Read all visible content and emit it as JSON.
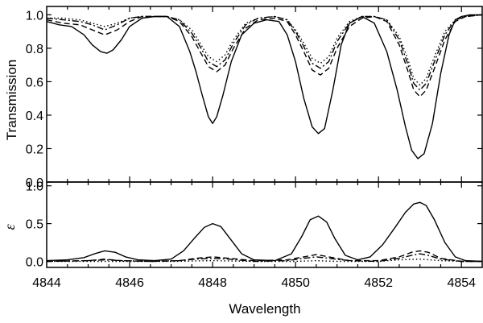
{
  "chart_data": [
    {
      "type": "line",
      "panel": "top",
      "ylabel": "Transmission",
      "xlim": [
        4844,
        4854.5
      ],
      "ylim": [
        0,
        1.05
      ],
      "yticks": [
        0.0,
        0.2,
        0.4,
        0.6,
        0.8,
        1.0
      ],
      "ytick_labels": [
        "0.0",
        "0.2",
        "0.4",
        "0.6",
        "0.8",
        "1.0"
      ],
      "grid": false,
      "series": [
        {
          "style": "solid",
          "x": [
            4844.0,
            4844.3,
            4844.6,
            4844.9,
            4845.1,
            4845.3,
            4845.45,
            4845.6,
            4845.8,
            4846.0,
            4846.3,
            4846.6,
            4846.9,
            4847.2,
            4847.45,
            4847.6,
            4847.75,
            4847.9,
            4848.0,
            4848.1,
            4848.25,
            4848.45,
            4848.7,
            4849.0,
            4849.3,
            4849.6,
            4849.8,
            4850.0,
            4850.2,
            4850.4,
            4850.55,
            4850.7,
            4850.9,
            4851.1,
            4851.3,
            4851.6,
            4851.9,
            4852.2,
            4852.45,
            4852.65,
            4852.8,
            4852.95,
            4853.1,
            4853.3,
            4853.5,
            4853.7,
            4853.85,
            4854.0,
            4854.2,
            4854.5
          ],
          "y": [
            0.96,
            0.94,
            0.93,
            0.88,
            0.82,
            0.78,
            0.77,
            0.79,
            0.85,
            0.93,
            0.98,
            0.99,
            0.99,
            0.93,
            0.78,
            0.66,
            0.52,
            0.39,
            0.35,
            0.39,
            0.52,
            0.72,
            0.88,
            0.95,
            0.97,
            0.96,
            0.88,
            0.72,
            0.5,
            0.33,
            0.29,
            0.32,
            0.55,
            0.82,
            0.95,
            0.99,
            0.95,
            0.78,
            0.55,
            0.33,
            0.19,
            0.14,
            0.17,
            0.35,
            0.65,
            0.88,
            0.97,
            0.99,
            1.0,
            1.0
          ]
        },
        {
          "style": "dashed",
          "x": [
            4844.0,
            4844.4,
            4844.8,
            4845.1,
            4845.4,
            4845.7,
            4846.0,
            4846.3,
            4846.6,
            4846.9,
            4847.2,
            4847.5,
            4847.7,
            4847.9,
            4848.1,
            4848.3,
            4848.5,
            4848.8,
            4849.1,
            4849.5,
            4849.8,
            4850.0,
            4850.2,
            4850.4,
            4850.6,
            4850.8,
            4851.0,
            4851.3,
            4851.6,
            4851.9,
            4852.2,
            4852.5,
            4852.7,
            4852.85,
            4853.0,
            4853.15,
            4853.35,
            4853.6,
            4853.85,
            4854.1,
            4854.5
          ],
          "y": [
            0.97,
            0.95,
            0.94,
            0.91,
            0.88,
            0.91,
            0.96,
            0.99,
            0.99,
            0.99,
            0.96,
            0.87,
            0.78,
            0.69,
            0.66,
            0.7,
            0.8,
            0.92,
            0.97,
            0.98,
            0.96,
            0.88,
            0.78,
            0.67,
            0.64,
            0.68,
            0.8,
            0.93,
            0.98,
            0.99,
            0.96,
            0.82,
            0.67,
            0.55,
            0.51,
            0.55,
            0.68,
            0.85,
            0.96,
            0.99,
            1.0
          ]
        },
        {
          "style": "dash-dot",
          "x": [
            4844.0,
            4844.4,
            4844.8,
            4845.1,
            4845.4,
            4845.7,
            4846.0,
            4846.3,
            4846.6,
            4846.9,
            4847.2,
            4847.5,
            4847.7,
            4847.9,
            4848.1,
            4848.3,
            4848.5,
            4848.8,
            4849.1,
            4849.5,
            4849.8,
            4850.0,
            4850.2,
            4850.4,
            4850.6,
            4850.8,
            4851.0,
            4851.3,
            4851.6,
            4851.9,
            4852.2,
            4852.5,
            4852.7,
            4852.85,
            4853.0,
            4853.15,
            4853.35,
            4853.6,
            4853.85,
            4854.1,
            4854.5
          ],
          "y": [
            0.98,
            0.97,
            0.96,
            0.94,
            0.91,
            0.94,
            0.98,
            0.99,
            0.99,
            0.99,
            0.97,
            0.89,
            0.81,
            0.72,
            0.69,
            0.73,
            0.83,
            0.94,
            0.98,
            0.99,
            0.97,
            0.9,
            0.81,
            0.71,
            0.68,
            0.72,
            0.84,
            0.95,
            0.99,
            0.99,
            0.97,
            0.85,
            0.71,
            0.59,
            0.55,
            0.59,
            0.72,
            0.88,
            0.97,
            0.99,
            1.0
          ]
        },
        {
          "style": "dotted",
          "x": [
            4844.0,
            4844.4,
            4844.8,
            4845.1,
            4845.4,
            4845.7,
            4846.0,
            4846.3,
            4846.6,
            4846.9,
            4847.2,
            4847.5,
            4847.7,
            4847.9,
            4848.1,
            4848.3,
            4848.5,
            4848.8,
            4849.1,
            4849.5,
            4849.8,
            4850.0,
            4850.2,
            4850.4,
            4850.6,
            4850.8,
            4851.0,
            4851.3,
            4851.6,
            4851.9,
            4852.2,
            4852.5,
            4852.7,
            4852.85,
            4853.0,
            4853.15,
            4853.35,
            4853.6,
            4853.85,
            4854.1,
            4854.5
          ],
          "y": [
            0.98,
            0.98,
            0.97,
            0.95,
            0.93,
            0.95,
            0.98,
            0.99,
            0.99,
            0.99,
            0.97,
            0.91,
            0.83,
            0.75,
            0.72,
            0.76,
            0.85,
            0.95,
            0.98,
            0.99,
            0.97,
            0.91,
            0.83,
            0.74,
            0.71,
            0.75,
            0.86,
            0.96,
            0.99,
            0.99,
            0.97,
            0.87,
            0.74,
            0.62,
            0.58,
            0.62,
            0.75,
            0.9,
            0.97,
            0.99,
            1.0
          ]
        }
      ]
    },
    {
      "type": "line",
      "panel": "bottom",
      "ylabel": "ε",
      "xlabel": "Wavelength",
      "xlim": [
        4844,
        4854.5
      ],
      "ylim": [
        -0.08,
        1.05
      ],
      "xticks": [
        4844,
        4846,
        4848,
        4850,
        4852,
        4854
      ],
      "xtick_labels": [
        "4844",
        "4846",
        "4848",
        "4850",
        "4852",
        "4854"
      ],
      "yticks": [
        0.0,
        0.5,
        1.0
      ],
      "ytick_labels": [
        "0.0",
        "0.5",
        "1.0"
      ],
      "grid": false,
      "series": [
        {
          "style": "solid",
          "x": [
            4844.0,
            4844.5,
            4844.9,
            4845.15,
            4845.4,
            4845.65,
            4845.9,
            4846.2,
            4846.6,
            4847.0,
            4847.3,
            4847.55,
            4847.8,
            4848.0,
            4848.2,
            4848.45,
            4848.7,
            4849.0,
            4849.5,
            4849.9,
            4850.15,
            4850.35,
            4850.55,
            4850.75,
            4850.95,
            4851.2,
            4851.5,
            4851.8,
            4852.1,
            4852.4,
            4852.65,
            4852.85,
            4853.0,
            4853.15,
            4853.35,
            4853.6,
            4853.85,
            4854.1,
            4854.5
          ],
          "y": [
            0.01,
            0.02,
            0.05,
            0.1,
            0.14,
            0.12,
            0.06,
            0.02,
            0.01,
            0.03,
            0.14,
            0.3,
            0.45,
            0.5,
            0.46,
            0.28,
            0.1,
            0.02,
            0.01,
            0.1,
            0.33,
            0.55,
            0.6,
            0.52,
            0.3,
            0.08,
            0.02,
            0.06,
            0.22,
            0.45,
            0.65,
            0.76,
            0.78,
            0.74,
            0.55,
            0.25,
            0.06,
            0.01,
            0.0
          ]
        },
        {
          "style": "dashed",
          "x": [
            4844.0,
            4845.0,
            4845.4,
            4845.8,
            4846.5,
            4847.2,
            4847.6,
            4848.0,
            4848.4,
            4849.0,
            4849.8,
            4850.2,
            4850.5,
            4850.8,
            4851.3,
            4852.0,
            4852.5,
            4852.8,
            4853.0,
            4853.2,
            4853.5,
            4854.0,
            4854.5
          ],
          "y": [
            0.0,
            0.01,
            0.03,
            0.01,
            0.0,
            0.01,
            0.04,
            0.06,
            0.04,
            0.01,
            0.02,
            0.06,
            0.09,
            0.06,
            0.01,
            0.01,
            0.06,
            0.12,
            0.14,
            0.12,
            0.04,
            0.0,
            0.0
          ]
        },
        {
          "style": "dash-dot",
          "x": [
            4844.0,
            4845.0,
            4845.4,
            4845.8,
            4846.5,
            4847.2,
            4847.6,
            4848.0,
            4848.4,
            4849.0,
            4849.8,
            4850.2,
            4850.5,
            4850.8,
            4851.3,
            4852.0,
            4852.5,
            4852.8,
            4853.0,
            4853.2,
            4853.5,
            4854.0,
            4854.5
          ],
          "y": [
            0.0,
            0.01,
            0.02,
            0.01,
            0.0,
            0.01,
            0.03,
            0.04,
            0.03,
            0.0,
            0.01,
            0.04,
            0.06,
            0.04,
            0.01,
            0.0,
            0.04,
            0.08,
            0.1,
            0.08,
            0.03,
            0.0,
            0.0
          ]
        },
        {
          "style": "dotted",
          "x": [
            4844.0,
            4845.0,
            4846.0,
            4847.0,
            4848.0,
            4849.0,
            4850.0,
            4850.5,
            4851.0,
            4852.0,
            4852.5,
            4853.0,
            4853.5,
            4854.0,
            4854.5
          ],
          "y": [
            0.0,
            0.0,
            0.0,
            0.0,
            0.01,
            0.0,
            0.0,
            0.01,
            0.0,
            0.0,
            0.02,
            0.03,
            0.01,
            0.0,
            0.0
          ]
        }
      ]
    }
  ]
}
